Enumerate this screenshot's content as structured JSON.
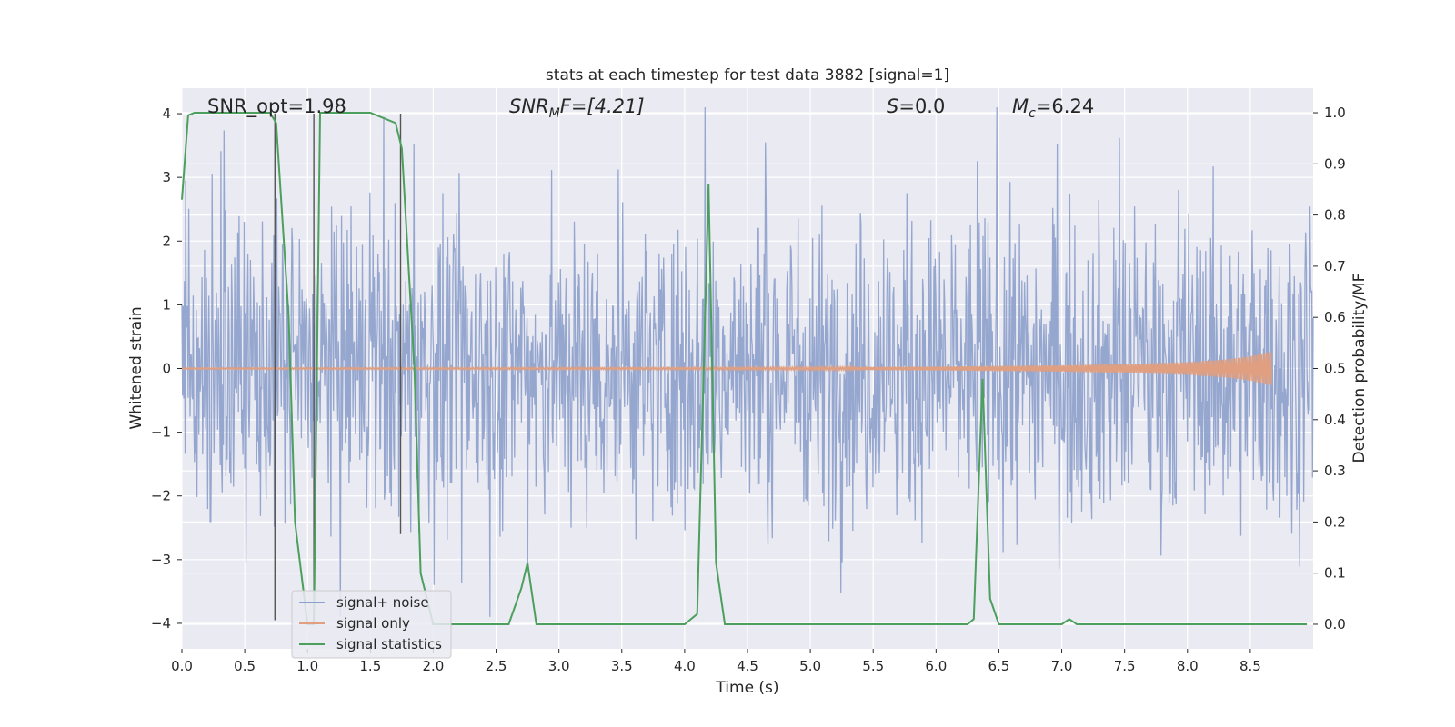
{
  "chart_data": {
    "type": "line",
    "title": "stats at each timestep for test data 3882 [signal=1]",
    "xlabel": "Time (s)",
    "ylabel": "Whitened strain",
    "y2label": "Detection probability/MF",
    "xlim": [
      0,
      9.0
    ],
    "ylim": [
      -4.4,
      4.4
    ],
    "y2lim": [
      -0.048,
      1.048
    ],
    "xticks": [
      0.0,
      0.5,
      1.0,
      1.5,
      2.0,
      2.5,
      3.0,
      3.5,
      4.0,
      4.5,
      5.0,
      5.5,
      6.0,
      6.5,
      7.0,
      7.5,
      8.0,
      8.5
    ],
    "xtick_labels": [
      "0.0",
      "0.5",
      "1.0",
      "1.5",
      "2.0",
      "2.5",
      "3.0",
      "3.5",
      "4.0",
      "4.5",
      "5.0",
      "5.5",
      "6.0",
      "6.5",
      "7.0",
      "7.5",
      "8.0",
      "8.5"
    ],
    "yticks": [
      -4,
      -3,
      -2,
      -1,
      0,
      1,
      2,
      3,
      4
    ],
    "ytick_labels": [
      "−4",
      "−3",
      "−2",
      "−1",
      "0",
      "1",
      "2",
      "3",
      "4"
    ],
    "y2ticks": [
      0.0,
      0.1,
      0.2,
      0.3,
      0.4,
      0.5,
      0.6,
      0.7,
      0.8,
      0.9,
      1.0
    ],
    "y2tick_labels": [
      "0.0",
      "0.1",
      "0.2",
      "0.3",
      "0.4",
      "0.5",
      "0.6",
      "0.7",
      "0.8",
      "0.9",
      "1.0"
    ],
    "grid": true,
    "legend": {
      "placement": "lower-left",
      "entries": [
        "signal+ noise",
        "signal only",
        "signal statistics"
      ]
    },
    "annotations": {
      "snr_opt": "SNR_opt=1.98",
      "snr_mf_base": "SNR",
      "snr_mf_sub": "M",
      "snr_mf_tail": "F=[4.21]",
      "s_stat_sym": "S",
      "s_stat_val": "=0.0",
      "mc_base": "M",
      "mc_sub": "c",
      "mc_val": "=6.24"
    },
    "series": [
      {
        "name": "signal+ noise",
        "axis": "left",
        "color": "#8da0cb",
        "description_kind": "noise",
        "x_range": [
          0,
          9.0
        ],
        "typical_envelope": [
          -2.5,
          2.5
        ],
        "peak_values": [
          -3.9,
          4.1
        ]
      },
      {
        "name": "signal only",
        "axis": "left",
        "color": "#e09f80",
        "description_kind": "chirp",
        "x_range": [
          0,
          8.67
        ],
        "x": [
          0,
          4.0,
          5.0,
          6.0,
          7.0,
          7.5,
          8.0,
          8.3,
          8.5,
          8.62,
          8.67
        ],
        "amplitude": [
          0.01,
          0.015,
          0.02,
          0.03,
          0.05,
          0.07,
          0.1,
          0.14,
          0.19,
          0.25,
          0.26
        ]
      },
      {
        "name": "signal statistics",
        "axis": "right",
        "color": "#4c9f5c",
        "x": [
          0,
          0.05,
          0.1,
          0.2,
          0.3,
          0.5,
          0.7,
          0.75,
          0.85,
          0.9,
          1.0,
          1.05,
          1.1,
          1.3,
          1.5,
          1.6,
          1.7,
          1.75,
          1.85,
          1.9,
          2.0,
          2.2,
          2.4,
          2.6,
          2.7,
          2.75,
          2.82,
          3.0,
          3.5,
          4.0,
          4.1,
          4.13,
          4.19,
          4.25,
          4.32,
          4.5,
          5.0,
          5.5,
          6.0,
          6.25,
          6.3,
          6.37,
          6.43,
          6.5,
          6.8,
          7.0,
          7.06,
          7.12,
          7.5,
          8.0,
          8.5,
          8.95
        ],
        "y": [
          0.83,
          0.995,
          1.0,
          1.0,
          1.0,
          1.0,
          1.0,
          0.98,
          0.6,
          0.2,
          0.0,
          0.0,
          1.0,
          1.0,
          1.0,
          0.99,
          0.98,
          0.93,
          0.5,
          0.1,
          0.0,
          0.0,
          0.0,
          0.0,
          0.07,
          0.12,
          0.0,
          0.0,
          0.0,
          0.0,
          0.02,
          0.3,
          0.86,
          0.12,
          0.0,
          0.0,
          0.0,
          0.0,
          0.0,
          0.0,
          0.01,
          0.48,
          0.05,
          0.0,
          0.0,
          0.0,
          0.01,
          0.0,
          0.0,
          0.0,
          0.0,
          0.0
        ]
      },
      {
        "name": "",
        "axis": "left",
        "color": "#555555",
        "description_kind": "vertical-markers",
        "x": [
          0.74,
          1.05,
          1.74
        ],
        "y_from": [
          -3.95,
          -3.95,
          -2.6
        ],
        "y_to": [
          4.0,
          4.0,
          4.0
        ]
      }
    ]
  }
}
